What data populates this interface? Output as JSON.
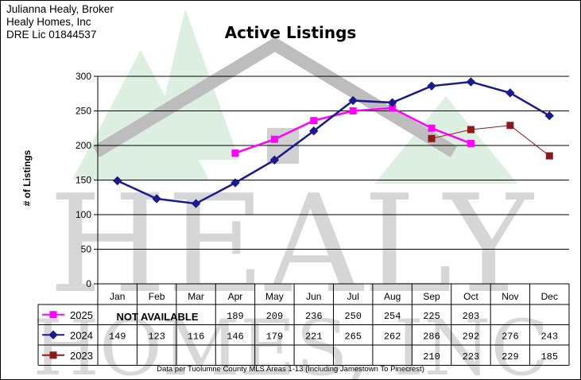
{
  "header": {
    "line1": "Julianna Healy, Broker",
    "line2": "Healy Homes, Inc",
    "line3": "DRE Lic 01844537"
  },
  "watermark": {
    "line1": "HEALY",
    "line2": "HOMES, INC"
  },
  "footer": "Data per Tuolumne County MLS Areas 1-13 (Including Jamestown To Pinecrest)",
  "not_available_label": "NOT AVAILABLE",
  "colors": {
    "s2025": "#ff00ff",
    "s2024": "#1a1a8c",
    "s2023": "#8b1a1a",
    "gridline": "#000000",
    "watermark_text": "#c8c8c8",
    "watermark_trees": "#dcefe0"
  },
  "chart_data": {
    "type": "line",
    "title": "Active Listings",
    "ylabel": "# of Listings",
    "xlabel": "",
    "ylim": [
      0,
      300
    ],
    "yticks": [
      0,
      50,
      100,
      150,
      200,
      250,
      300
    ],
    "grid": true,
    "legend": "table-below",
    "categories": [
      "Jan",
      "Feb",
      "Mar",
      "Apr",
      "May",
      "Jun",
      "Jul",
      "Aug",
      "Sep",
      "Oct",
      "Nov",
      "Dec"
    ],
    "series": [
      {
        "name": "2025",
        "key": "s2025",
        "marker": "square",
        "values": [
          null,
          null,
          null,
          189,
          209,
          236,
          250,
          254,
          225,
          203,
          null,
          null
        ]
      },
      {
        "name": "2024",
        "key": "s2024",
        "marker": "diamond",
        "values": [
          149,
          123,
          116,
          146,
          179,
          221,
          265,
          262,
          286,
          292,
          276,
          243
        ]
      },
      {
        "name": "2023",
        "key": "s2023",
        "marker": "square",
        "values": [
          null,
          null,
          null,
          null,
          null,
          null,
          null,
          null,
          210,
          223,
          229,
          185
        ]
      }
    ]
  }
}
